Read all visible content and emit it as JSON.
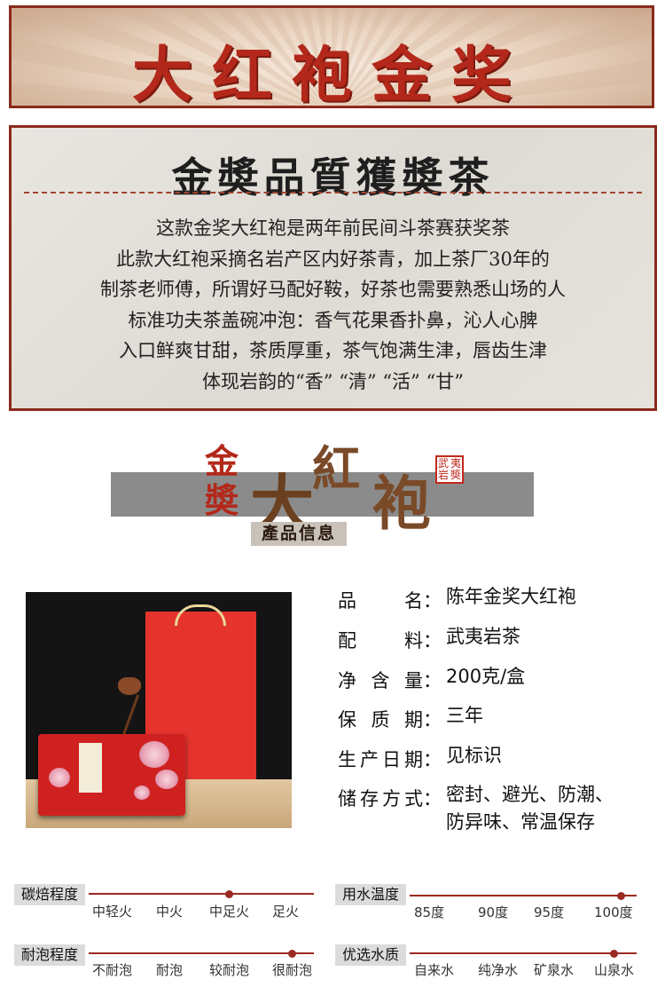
{
  "banner": {
    "title": "大红袍金奖"
  },
  "intro": {
    "title": "金奬品質獲奬茶",
    "lines": [
      "这款金奖大红袍是两年前民间斗茶赛获奖茶",
      "此款大红袍采摘名岩产区内好茶青，加上茶厂30年的",
      "制茶老师傅，所谓好马配好鞍，好茶也需要熟悉山场的人",
      "标准功夫茶盖碗冲泡：香气花果香扑鼻，沁人心脾",
      "入口鲜爽甘甜，茶质厚重，茶气饱满生津，唇齿生津",
      "体现岩韵的“香” “清” “活” “甘”"
    ]
  },
  "product_header": {
    "jin_top": "金",
    "jin_bottom": "奬",
    "da": "大",
    "hong": "紅",
    "pao": "袍",
    "seal_chars": [
      "武",
      "夷",
      "岩",
      "奬"
    ],
    "tag": "產品信息"
  },
  "specs": [
    {
      "label": "品名",
      "colon": "：",
      "value": [
        "陈年金奖大红袍"
      ]
    },
    {
      "label": "配料",
      "colon": "：",
      "value": [
        "武夷岩茶"
      ]
    },
    {
      "label": "净含量",
      "colon": "：",
      "value": [
        "200克/盒"
      ]
    },
    {
      "label": "保质期",
      "colon": "：",
      "value": [
        "三年"
      ]
    },
    {
      "label": "生产日期",
      "colon": "：",
      "value": [
        "见标识"
      ]
    },
    {
      "label": "储存方式",
      "colon": "：",
      "value": [
        "密封、避光、防潮、",
        "防异味、常温保存"
      ]
    }
  ],
  "scales": [
    {
      "label": "碳焙程度",
      "options": [
        "中轻火",
        "中火",
        "中足火",
        "足火"
      ],
      "selected_index": 2
    },
    {
      "label": "用水温度",
      "options": [
        "85度",
        "90度",
        "95度",
        "100度"
      ],
      "selected_index": 3
    },
    {
      "label": "耐泡程度",
      "options": [
        "不耐泡",
        "耐泡",
        "较耐泡",
        "很耐泡"
      ],
      "selected_index": 3
    },
    {
      "label": "优选水质",
      "options": [
        "自来水",
        "纯净水",
        "矿泉水",
        "山泉水"
      ],
      "selected_index": 3
    }
  ],
  "colors": {
    "accent": "#9b2a22",
    "banner_red": "#b3281a",
    "border": "#8a2a1c"
  }
}
